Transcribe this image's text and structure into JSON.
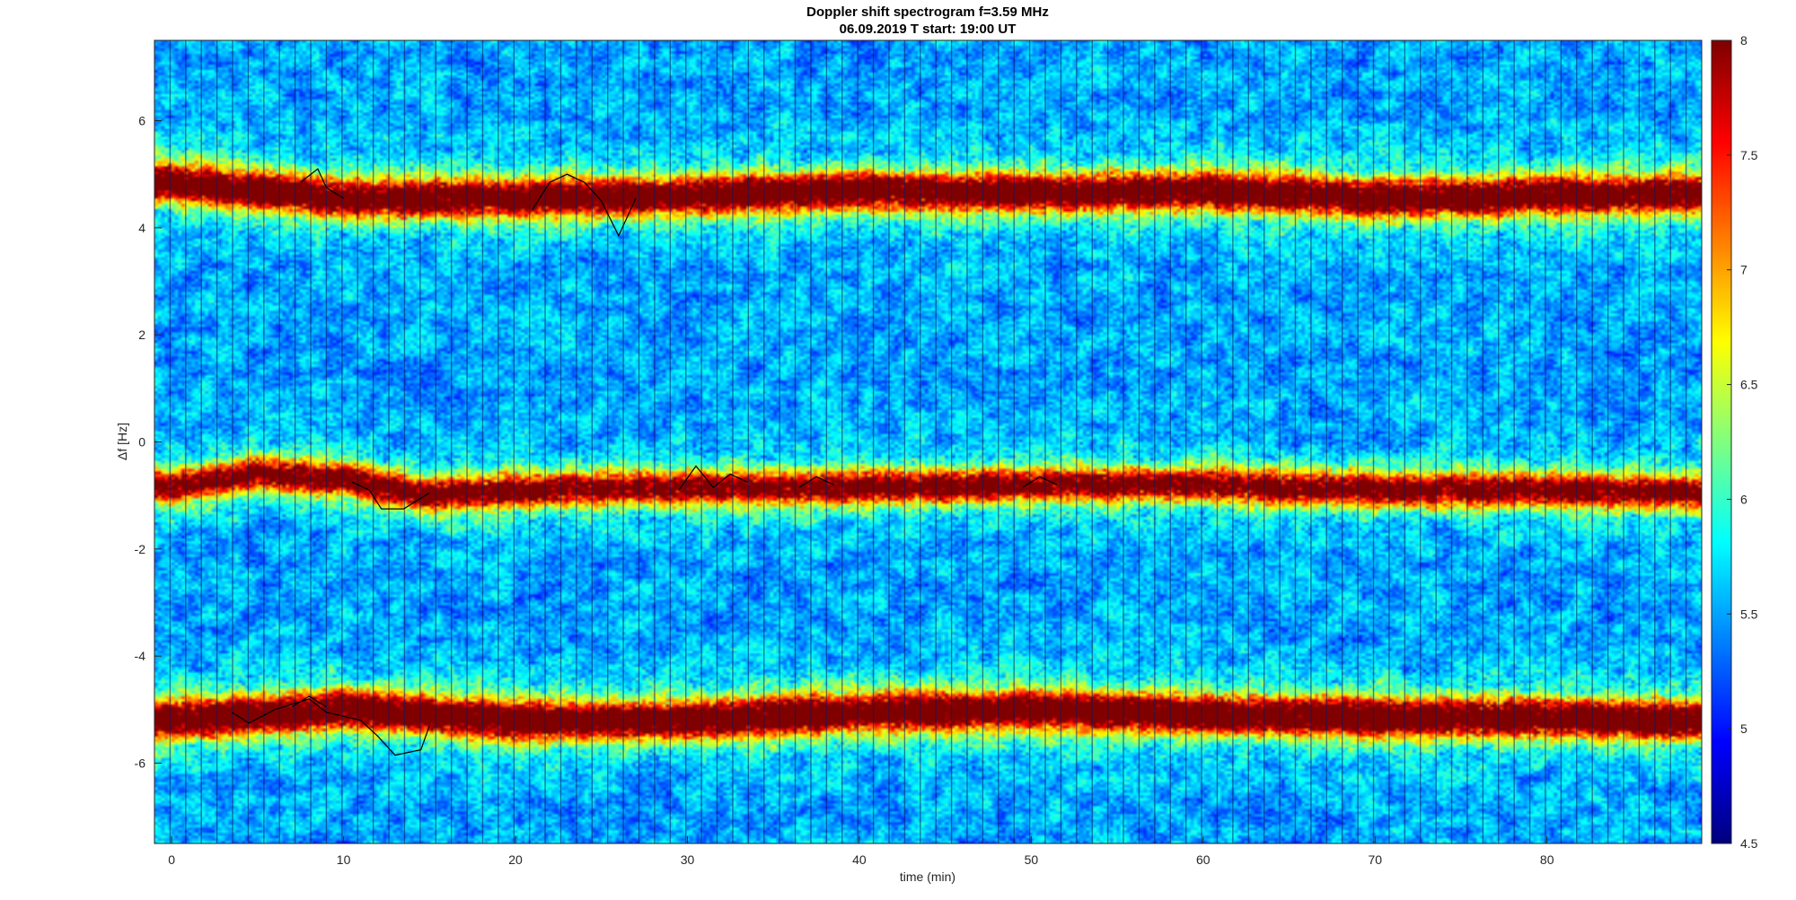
{
  "chart_data": {
    "type": "heatmap",
    "title": "Doppler shift spectrogram f=3.59 MHz",
    "subtitle": "06.09.2019   T start: 19:00 UT",
    "xlabel": "time (min)",
    "ylabel": "Δf [Hz]",
    "xlim": [
      -1,
      89
    ],
    "ylim": [
      -7.5,
      7.5
    ],
    "xticks": [
      0,
      10,
      20,
      30,
      40,
      50,
      60,
      70,
      80
    ],
    "yticks": [
      -6,
      -4,
      -2,
      0,
      2,
      4,
      6
    ],
    "colorbar": {
      "colormap": "jet",
      "limits": [
        4.5,
        8
      ],
      "ticks": [
        4.5,
        5,
        5.5,
        6,
        6.5,
        7,
        7.5,
        8
      ]
    },
    "bands": [
      {
        "center": [
          [
            0,
            4.85
          ],
          [
            10,
            4.55
          ],
          [
            20,
            4.55
          ],
          [
            30,
            4.6
          ],
          [
            40,
            4.7
          ],
          [
            50,
            4.65
          ],
          [
            60,
            4.7
          ],
          [
            70,
            4.55
          ],
          [
            80,
            4.6
          ],
          [
            89,
            4.65
          ]
        ],
        "strength": 0.8,
        "width": 0.35
      },
      {
        "center": [
          [
            0,
            -0.85
          ],
          [
            5,
            -0.6
          ],
          [
            10,
            -0.7
          ],
          [
            15,
            -1.0
          ],
          [
            20,
            -0.9
          ],
          [
            30,
            -0.85
          ],
          [
            40,
            -0.85
          ],
          [
            50,
            -0.8
          ],
          [
            60,
            -0.8
          ],
          [
            70,
            -0.9
          ],
          [
            80,
            -0.9
          ],
          [
            89,
            -0.95
          ]
        ],
        "strength": 0.72,
        "width": 0.3
      },
      {
        "center": [
          [
            0,
            -5.2
          ],
          [
            10,
            -5.0
          ],
          [
            20,
            -5.2
          ],
          [
            30,
            -5.2
          ],
          [
            40,
            -5.05
          ],
          [
            50,
            -5.0
          ],
          [
            60,
            -5.1
          ],
          [
            70,
            -5.15
          ],
          [
            80,
            -5.15
          ],
          [
            89,
            -5.2
          ]
        ],
        "strength": 0.85,
        "width": 0.35
      }
    ],
    "series": [
      {
        "values": [
          [
            3.5,
            -5.05
          ],
          [
            4.5,
            -5.25
          ],
          [
            6,
            -5.0
          ],
          [
            8,
            -4.8
          ],
          [
            9,
            -5.05
          ],
          [
            11,
            -5.2
          ],
          [
            12,
            -5.5
          ],
          [
            13,
            -5.85
          ],
          [
            14.5,
            -5.75
          ],
          [
            15,
            -5.3
          ]
        ]
      },
      {
        "values": [
          [
            7,
            -4.95
          ],
          [
            8,
            -4.75
          ],
          [
            9,
            -4.95
          ]
        ]
      },
      {
        "values": [
          [
            7.5,
            4.85
          ],
          [
            8.5,
            5.1
          ],
          [
            9,
            4.75
          ],
          [
            10,
            4.55
          ]
        ]
      },
      {
        "values": [
          [
            21,
            4.35
          ],
          [
            22,
            4.85
          ],
          [
            23,
            5.0
          ],
          [
            24,
            4.85
          ],
          [
            25,
            4.5
          ],
          [
            26,
            3.85
          ],
          [
            27,
            4.55
          ]
        ]
      },
      {
        "values": [
          [
            10.5,
            -0.75
          ],
          [
            11.5,
            -0.9
          ],
          [
            12.2,
            -1.25
          ],
          [
            13.5,
            -1.25
          ],
          [
            15,
            -0.95
          ]
        ]
      },
      {
        "values": [
          [
            29.5,
            -0.9
          ],
          [
            30.5,
            -0.45
          ],
          [
            31.5,
            -0.85
          ],
          [
            32.5,
            -0.6
          ],
          [
            33.5,
            -0.75
          ]
        ]
      },
      {
        "values": [
          [
            36.5,
            -0.85
          ],
          [
            37.5,
            -0.65
          ],
          [
            38.5,
            -0.8
          ]
        ]
      },
      {
        "values": [
          [
            49.5,
            -0.85
          ],
          [
            50.5,
            -0.65
          ],
          [
            51.5,
            -0.8
          ]
        ]
      }
    ]
  }
}
